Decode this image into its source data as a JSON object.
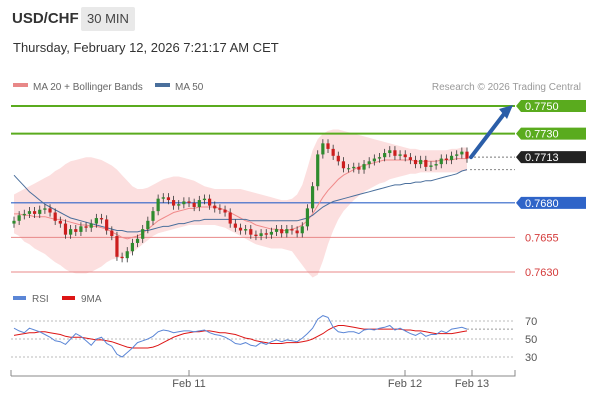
{
  "header": {
    "symbol": "USD/CHF",
    "timeframe": "30 MIN",
    "datetime": "Thursday, February 12, 2026 7:21:17 AM CET"
  },
  "legend": {
    "ma20_bb": "MA 20 + Bollinger Bands",
    "ma50": "MA 50",
    "copyright": "Research © 2026 Trading Central"
  },
  "rsi_legend": {
    "rsi": "RSI",
    "ma9": "9MA"
  },
  "colors": {
    "up": "#2e8b2e",
    "down": "#cc1e1e",
    "resistance": "#5aab1e",
    "pivot": "#2f64c8",
    "support": "#e88888",
    "arrow": "#2b5ea8",
    "band_fill": "#fbd9d9",
    "ma20": "#f08a8a",
    "ma50": "#4a6f9c",
    "rsi": "#5b86d6",
    "rsi_ma": "#dd1515"
  },
  "chart_data": [
    {
      "type": "candlestick",
      "title": "USD/CHF",
      "timeframe": "30 MIN",
      "x_labels": [
        "Feb 11",
        "Feb 12",
        "Feb 13"
      ],
      "ylim": [
        0.762,
        0.776
      ],
      "price_levels": [
        {
          "label": "0.7750",
          "value": 0.775,
          "kind": "resistance"
        },
        {
          "label": "0.7730",
          "value": 0.773,
          "kind": "resistance"
        },
        {
          "label": "0.7713",
          "value": 0.7713,
          "kind": "last"
        },
        {
          "label": "0.7680",
          "value": 0.768,
          "kind": "pivot"
        },
        {
          "label": "0.7655",
          "value": 0.7655,
          "kind": "support"
        },
        {
          "label": "0.7630",
          "value": 0.763,
          "kind": "support"
        }
      ],
      "close": [
        0.7667,
        0.7671,
        0.7672,
        0.7674,
        0.7672,
        0.7675,
        0.7676,
        0.7673,
        0.7667,
        0.7665,
        0.7657,
        0.7661,
        0.7659,
        0.7663,
        0.7662,
        0.7665,
        0.7669,
        0.7668,
        0.766,
        0.7656,
        0.7641,
        0.764,
        0.7645,
        0.7651,
        0.7654,
        0.7661,
        0.7667,
        0.7674,
        0.7683,
        0.7684,
        0.7682,
        0.7678,
        0.7679,
        0.7681,
        0.768,
        0.7677,
        0.7682,
        0.7683,
        0.7678,
        0.7676,
        0.7675,
        0.7673,
        0.7665,
        0.7662,
        0.766,
        0.7661,
        0.7657,
        0.7656,
        0.7658,
        0.7657,
        0.7659,
        0.7661,
        0.7658,
        0.7661,
        0.766,
        0.7658,
        0.7663,
        0.7676,
        0.7692,
        0.7715,
        0.7723,
        0.7719,
        0.7714,
        0.771,
        0.7705,
        0.7705,
        0.7706,
        0.7704,
        0.7708,
        0.771,
        0.7712,
        0.7713,
        0.7716,
        0.7718,
        0.7714,
        0.7715,
        0.7713,
        0.7711,
        0.7708,
        0.7711,
        0.7706,
        0.7707,
        0.7708,
        0.7712,
        0.7711,
        0.7714,
        0.7715,
        0.7717,
        0.7712
      ],
      "ma20": [
        0.7672,
        0.7672,
        0.7671,
        0.7671,
        0.767,
        0.767,
        0.767,
        0.7669,
        0.7668,
        0.7668,
        0.7667,
        0.7666,
        0.7665,
        0.7664,
        0.7664,
        0.7663,
        0.7663,
        0.7662,
        0.7661,
        0.7659,
        0.7657,
        0.7655,
        0.7654,
        0.7655,
        0.7656,
        0.7658,
        0.7661,
        0.7664,
        0.7667,
        0.7669,
        0.7671,
        0.7673,
        0.7674,
        0.7675,
        0.7676,
        0.7676,
        0.7677,
        0.7677,
        0.7677,
        0.7677,
        0.7676,
        0.7675,
        0.7673,
        0.7671,
        0.7669,
        0.7667,
        0.7666,
        0.7664,
        0.7663,
        0.7662,
        0.7661,
        0.7661,
        0.766,
        0.766,
        0.7661,
        0.7662,
        0.7664,
        0.7667,
        0.7672,
        0.7678,
        0.7684,
        0.7689,
        0.7693,
        0.7697,
        0.77,
        0.7702,
        0.7704,
        0.7706,
        0.7707,
        0.7708,
        0.7709,
        0.771,
        0.7711,
        0.7711,
        0.7711,
        0.7711,
        0.7711,
        0.7711,
        0.771,
        0.771,
        0.771,
        0.771,
        0.771,
        0.7711,
        0.7711,
        0.7711,
        0.7712,
        0.7712,
        0.7712
      ],
      "ma50": [
        0.77,
        0.7696,
        0.7692,
        0.7688,
        0.7685,
        0.7682,
        0.7679,
        0.7677,
        0.7675,
        0.7673,
        0.7671,
        0.7669,
        0.7668,
        0.7667,
        0.7666,
        0.7665,
        0.7664,
        0.7663,
        0.7662,
        0.7661,
        0.766,
        0.766,
        0.7659,
        0.7659,
        0.7659,
        0.766,
        0.766,
        0.7661,
        0.7662,
        0.7663,
        0.7663,
        0.7664,
        0.7665,
        0.7665,
        0.7666,
        0.7667,
        0.7667,
        0.7668,
        0.7668,
        0.7668,
        0.7668,
        0.7668,
        0.7668,
        0.7668,
        0.7668,
        0.7668,
        0.7667,
        0.7667,
        0.7667,
        0.7667,
        0.7667,
        0.7667,
        0.7667,
        0.7667,
        0.7667,
        0.7667,
        0.7668,
        0.7669,
        0.7671,
        0.7674,
        0.7677,
        0.7679,
        0.7681,
        0.7682,
        0.7683,
        0.7684,
        0.7685,
        0.7686,
        0.7687,
        0.7688,
        0.7689,
        0.769,
        0.7691,
        0.7692,
        0.7693,
        0.7693,
        0.7694,
        0.7694,
        0.7695,
        0.7695,
        0.7696,
        0.7696,
        0.7697,
        0.7698,
        0.7699,
        0.77,
        0.7701,
        0.7703,
        0.7704
      ],
      "bb_upper": [
        0.7686,
        0.7688,
        0.769,
        0.7692,
        0.7694,
        0.7696,
        0.7698,
        0.77,
        0.7703,
        0.7705,
        0.7708,
        0.771,
        0.7711,
        0.7712,
        0.7713,
        0.7713,
        0.7712,
        0.7711,
        0.7709,
        0.7707,
        0.7704,
        0.77,
        0.7696,
        0.7692,
        0.769,
        0.769,
        0.7691,
        0.7693,
        0.7695,
        0.7697,
        0.7698,
        0.7699,
        0.7699,
        0.7698,
        0.7697,
        0.7696,
        0.7694,
        0.7692,
        0.7691,
        0.769,
        0.769,
        0.769,
        0.769,
        0.769,
        0.769,
        0.7689,
        0.7688,
        0.7687,
        0.7686,
        0.7685,
        0.7684,
        0.7683,
        0.7682,
        0.7682,
        0.7683,
        0.7686,
        0.7693,
        0.7705,
        0.7718,
        0.7726,
        0.773,
        0.7732,
        0.7733,
        0.7733,
        0.7732,
        0.7731,
        0.773,
        0.7729,
        0.7728,
        0.7727,
        0.7726,
        0.7725,
        0.7724,
        0.7723,
        0.7722,
        0.7721,
        0.772,
        0.7719,
        0.7719,
        0.7718,
        0.7718,
        0.7718,
        0.7718,
        0.7718,
        0.7718,
        0.7719,
        0.7719,
        0.772,
        0.772
      ],
      "bb_lower": [
        0.7658,
        0.7656,
        0.7652,
        0.765,
        0.7647,
        0.7645,
        0.7643,
        0.764,
        0.7637,
        0.7635,
        0.7632,
        0.763,
        0.7629,
        0.7629,
        0.7629,
        0.763,
        0.7632,
        0.7634,
        0.7637,
        0.7639,
        0.764,
        0.7641,
        0.7642,
        0.7644,
        0.7647,
        0.765,
        0.7653,
        0.7656,
        0.7658,
        0.7659,
        0.766,
        0.7661,
        0.7662,
        0.7663,
        0.7664,
        0.7664,
        0.7664,
        0.7664,
        0.7664,
        0.7664,
        0.7663,
        0.7662,
        0.766,
        0.7658,
        0.7656,
        0.7654,
        0.7652,
        0.765,
        0.7649,
        0.7648,
        0.7647,
        0.7647,
        0.7647,
        0.7646,
        0.7645,
        0.764,
        0.7635,
        0.763,
        0.7626,
        0.7628,
        0.7638,
        0.765,
        0.766,
        0.7668,
        0.7674,
        0.7678,
        0.7682,
        0.7685,
        0.7688,
        0.769,
        0.7692,
        0.7694,
        0.7695,
        0.7697,
        0.7698,
        0.7699,
        0.77,
        0.7701,
        0.7701,
        0.7702,
        0.7702,
        0.7702,
        0.7702,
        0.7702,
        0.7702,
        0.7702,
        0.7702,
        0.7703,
        0.7703
      ],
      "forecast_arrow": {
        "from": 0.7713,
        "to": 0.775
      }
    },
    {
      "type": "line",
      "title": "RSI",
      "y_ticks": [
        70,
        50,
        30
      ],
      "ylim": [
        20,
        80
      ],
      "series": [
        {
          "name": "RSI",
          "values": [
            62,
            59,
            57,
            62,
            60,
            58,
            55,
            52,
            48,
            47,
            44,
            50,
            56,
            53,
            48,
            43,
            50,
            52,
            45,
            42,
            33,
            30,
            35,
            40,
            46,
            48,
            50,
            53,
            58,
            60,
            59,
            57,
            58,
            59,
            59,
            58,
            59,
            60,
            57,
            55,
            54,
            52,
            49,
            45,
            44,
            46,
            43,
            42,
            46,
            44,
            47,
            49,
            47,
            49,
            48,
            47,
            51,
            56,
            62,
            72,
            76,
            74,
            63,
            58,
            57,
            58,
            58,
            56,
            60,
            61,
            60,
            62,
            63,
            65,
            60,
            62,
            59,
            56,
            54,
            57,
            53,
            55,
            55,
            59,
            57,
            61,
            62,
            63,
            61
          ]
        },
        {
          "name": "9MA",
          "values": [
            54,
            55,
            56,
            57,
            57,
            58,
            58,
            57,
            56,
            55,
            53,
            52,
            52,
            52,
            51,
            50,
            49,
            49,
            48,
            47,
            45,
            43,
            41,
            40,
            40,
            40,
            40,
            41,
            43,
            46,
            49,
            52,
            54,
            56,
            57,
            58,
            58,
            59,
            59,
            58,
            57,
            57,
            56,
            55,
            53,
            51,
            50,
            48,
            47,
            46,
            45,
            45,
            45,
            46,
            46,
            46,
            47,
            48,
            50,
            53,
            56,
            60,
            63,
            65,
            65,
            64,
            63,
            62,
            61,
            61,
            61,
            61,
            61,
            61,
            61,
            61,
            60,
            60,
            59,
            59,
            58,
            57,
            56,
            56,
            56,
            56,
            57,
            58,
            59
          ]
        }
      ]
    }
  ]
}
